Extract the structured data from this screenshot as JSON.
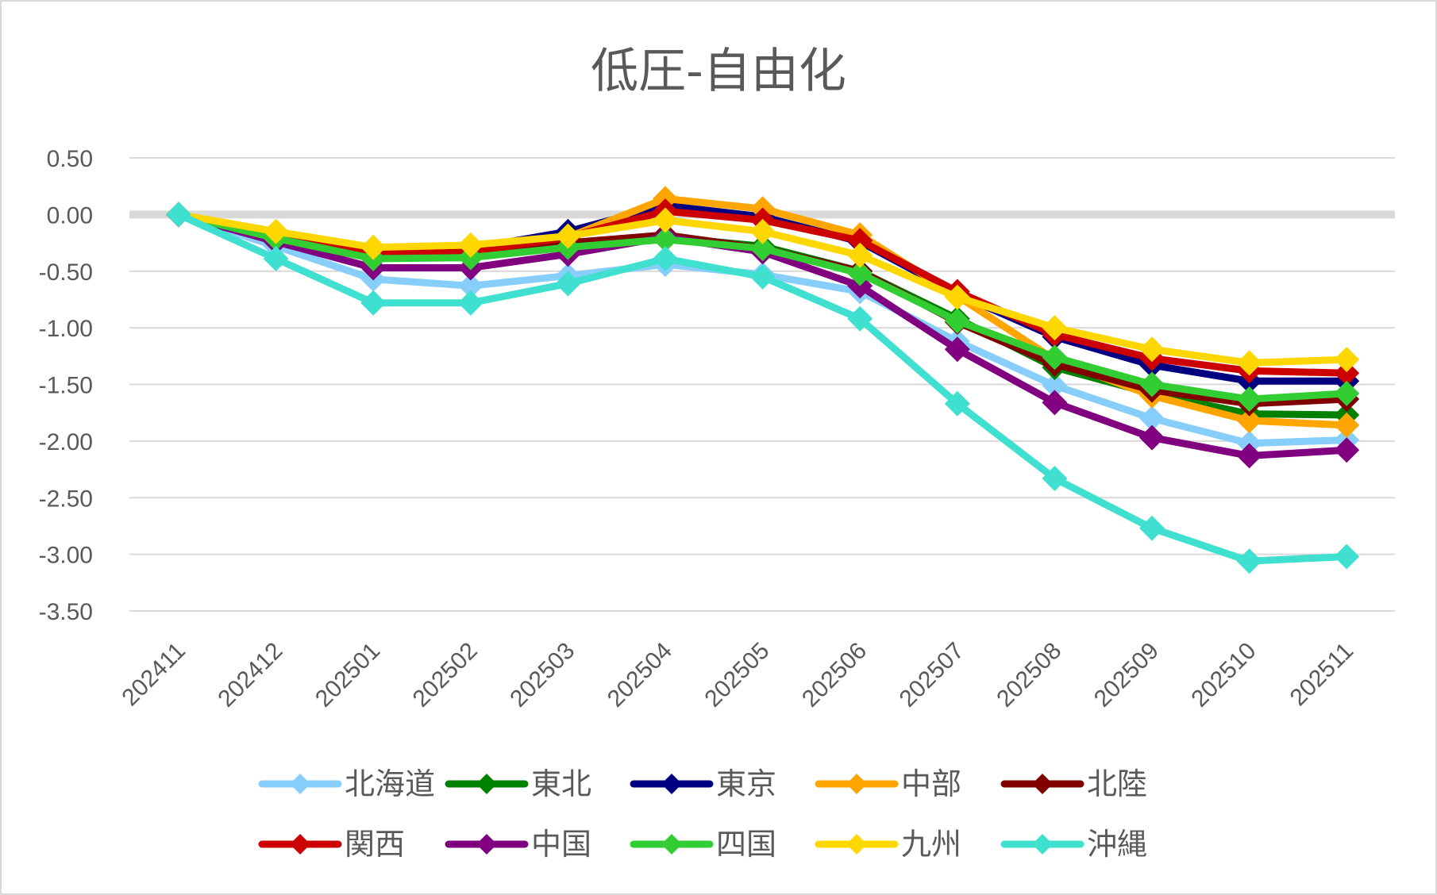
{
  "chart_data": {
    "type": "line",
    "title": "低圧-自由化",
    "xlabel": "",
    "ylabel": "",
    "ylim": [
      -3.5,
      0.5
    ],
    "y_ticks": [
      "0.50",
      "0.00",
      "-0.50",
      "-1.00",
      "-1.50",
      "-2.00",
      "-2.50",
      "-3.00",
      "-3.50"
    ],
    "y_tick_values": [
      0.5,
      0.0,
      -0.5,
      -1.0,
      -1.5,
      -2.0,
      -2.5,
      -3.0,
      -3.5
    ],
    "grid": true,
    "legend_position": "bottom",
    "categories": [
      "202411",
      "202412",
      "202501",
      "202502",
      "202503",
      "202504",
      "202505",
      "202506",
      "202507",
      "202508",
      "202509",
      "202510",
      "202511"
    ],
    "series": [
      {
        "name": "北海道",
        "color": "#87cefa",
        "values": [
          0,
          -0.28,
          -0.57,
          -0.63,
          -0.54,
          -0.44,
          -0.53,
          -0.68,
          -1.12,
          -1.51,
          -1.8,
          -2.02,
          -1.99
        ]
      },
      {
        "name": "東北",
        "color": "#008000",
        "values": [
          0,
          -0.22,
          -0.38,
          -0.38,
          -0.28,
          -0.2,
          -0.28,
          -0.5,
          -0.92,
          -1.35,
          -1.58,
          -1.76,
          -1.77
        ]
      },
      {
        "name": "東京",
        "color": "#000080",
        "values": [
          0,
          -0.19,
          -0.33,
          -0.3,
          -0.15,
          0.08,
          -0.02,
          -0.24,
          -0.7,
          -1.08,
          -1.33,
          -1.47,
          -1.47
        ]
      },
      {
        "name": "中部",
        "color": "#ffa500",
        "values": [
          0,
          -0.17,
          -0.32,
          -0.29,
          -0.2,
          0.14,
          0.05,
          -0.18,
          -0.72,
          -1.28,
          -1.6,
          -1.82,
          -1.86
        ]
      },
      {
        "name": "北陸",
        "color": "#800000",
        "values": [
          0,
          -0.22,
          -0.38,
          -0.36,
          -0.25,
          -0.18,
          -0.3,
          -0.5,
          -0.95,
          -1.32,
          -1.55,
          -1.67,
          -1.63
        ]
      },
      {
        "name": "関西",
        "color": "#cc0000",
        "values": [
          0,
          -0.18,
          -0.34,
          -0.33,
          -0.2,
          0.03,
          -0.05,
          -0.23,
          -0.68,
          -1.06,
          -1.27,
          -1.38,
          -1.4
        ]
      },
      {
        "name": "中国",
        "color": "#800080",
        "values": [
          0,
          -0.24,
          -0.47,
          -0.47,
          -0.35,
          -0.2,
          -0.33,
          -0.63,
          -1.19,
          -1.66,
          -1.97,
          -2.13,
          -2.08
        ]
      },
      {
        "name": "四国",
        "color": "#32cd32",
        "values": [
          0,
          -0.21,
          -0.39,
          -0.38,
          -0.29,
          -0.22,
          -0.3,
          -0.52,
          -0.94,
          -1.26,
          -1.5,
          -1.63,
          -1.58
        ]
      },
      {
        "name": "九州",
        "color": "#ffd700",
        "values": [
          0,
          -0.15,
          -0.29,
          -0.27,
          -0.19,
          -0.05,
          -0.15,
          -0.36,
          -0.73,
          -1.0,
          -1.19,
          -1.31,
          -1.28
        ]
      },
      {
        "name": "沖縄",
        "color": "#40e0d0",
        "values": [
          0,
          -0.39,
          -0.78,
          -0.78,
          -0.61,
          -0.39,
          -0.55,
          -0.92,
          -1.67,
          -2.33,
          -2.77,
          -3.06,
          -3.02
        ]
      }
    ]
  }
}
